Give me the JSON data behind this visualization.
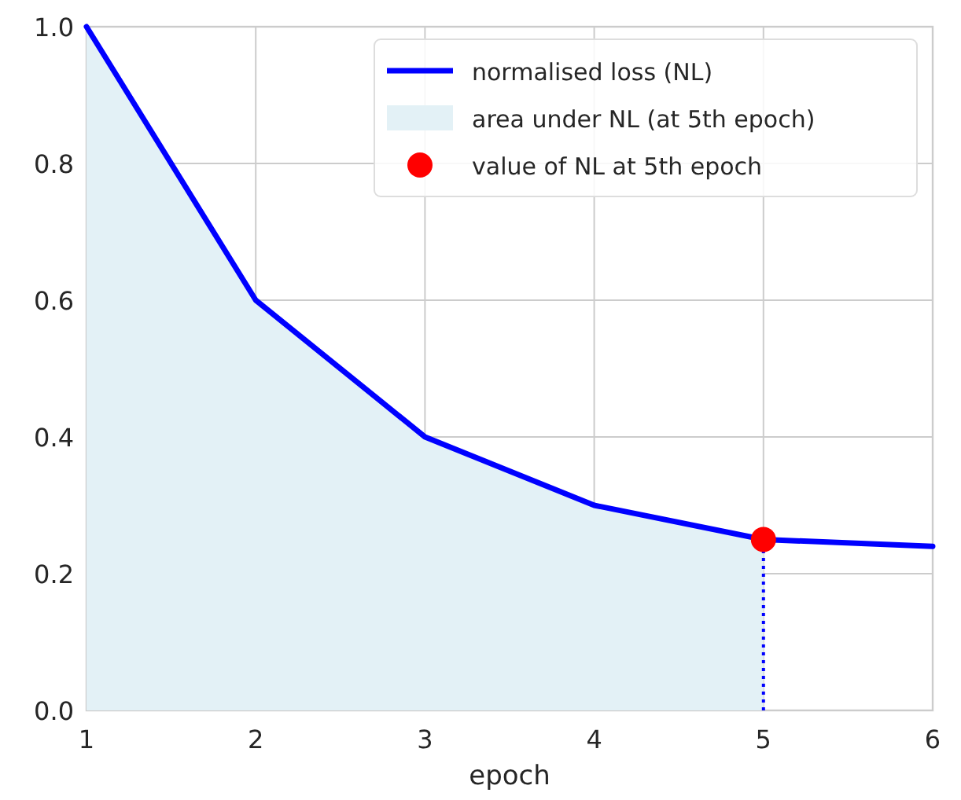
{
  "chart_data": {
    "type": "line",
    "xlabel": "epoch",
    "x": [
      1,
      2,
      3,
      4,
      5,
      6
    ],
    "series": [
      {
        "name": "normalised loss (NL)",
        "color": "#0000ff",
        "values": [
          1.0,
          0.6,
          0.4,
          0.3,
          0.25,
          0.24
        ]
      },
      {
        "name": "area under NL (at 5th epoch)",
        "type": "area",
        "color": "#e3f1f6",
        "x": [
          1,
          2,
          3,
          4,
          5
        ],
        "values": [
          1.0,
          0.6,
          0.4,
          0.3,
          0.25
        ]
      },
      {
        "type": "line",
        "color": "#0000ff",
        "x": [
          5,
          5
        ],
        "values": [
          0,
          0.25
        ],
        "line_style": "dotted"
      },
      {
        "name": "value of NL at 5th epoch",
        "type": "scatter",
        "color": "#ff0000",
        "x": [
          5
        ],
        "values": [
          0.25
        ],
        "marker": "circle"
      }
    ],
    "xlim": [
      1,
      6
    ],
    "xticks": [
      1,
      2,
      3,
      4,
      5,
      6
    ],
    "ylim": [
      0,
      1
    ],
    "yticks": [
      {
        "value": 0,
        "label": "0.0"
      },
      0.2,
      0.4,
      0.6,
      0.8,
      {
        "value": 1,
        "label": "1.0"
      }
    ],
    "grid": true,
    "legend": "top right"
  }
}
